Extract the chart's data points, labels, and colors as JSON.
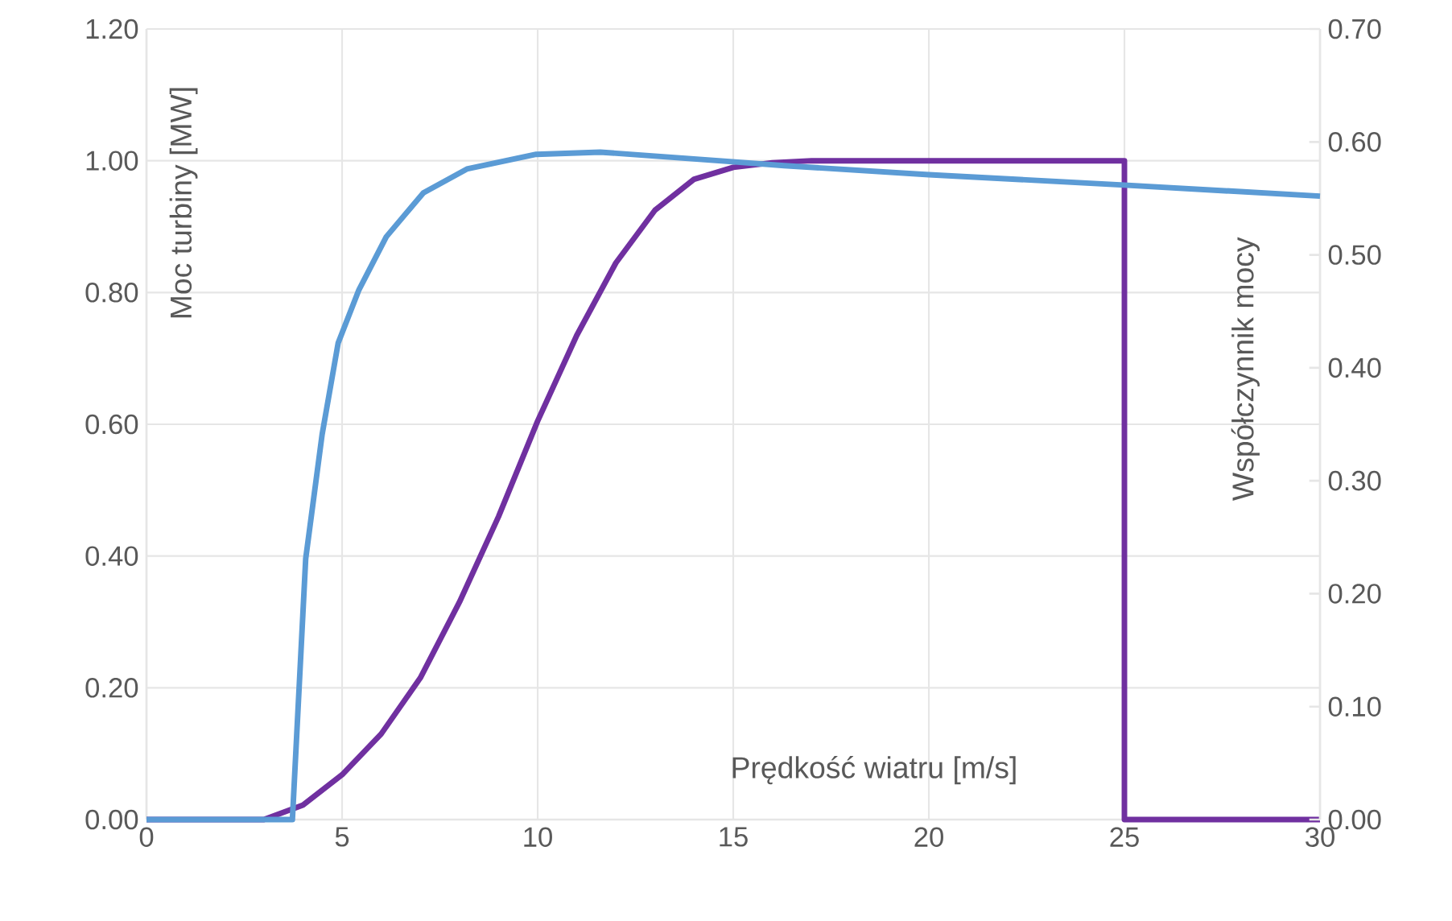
{
  "chart_data": {
    "type": "line",
    "xlabel": "Prędkość wiatru [m/s]",
    "ylabel": "Moc turbiny [MW]",
    "y2label": "Współczynnik mocy",
    "xlim": [
      0,
      30
    ],
    "xticks": [
      0,
      5,
      10,
      15,
      20,
      25,
      30
    ],
    "ylim": [
      0,
      1.2
    ],
    "yticks": [
      {
        "value": 0,
        "label": "0.00"
      },
      {
        "value": 0.2,
        "label": "0.20"
      },
      {
        "value": 0.4,
        "label": "0.40"
      },
      {
        "value": 0.6,
        "label": "0.60"
      },
      {
        "value": 0.8,
        "label": "0.80"
      },
      {
        "value": 1.0,
        "label": "1.00"
      },
      {
        "value": 1.2,
        "label": "1.20"
      }
    ],
    "y2lim": [
      0,
      0.7
    ],
    "y2ticks": [
      {
        "value": 0,
        "label": "0.00"
      },
      {
        "value": 0.1,
        "label": "0.10"
      },
      {
        "value": 0.2,
        "label": "0.20"
      },
      {
        "value": 0.3,
        "label": "0.30"
      },
      {
        "value": 0.4,
        "label": "0.40"
      },
      {
        "value": 0.5,
        "label": "0.50"
      },
      {
        "value": 0.6,
        "label": "0.60"
      },
      {
        "value": 0.7,
        "label": "0.70"
      }
    ],
    "grid": true,
    "legend": false,
    "marker": "none",
    "line_style": "solid",
    "series": [
      {
        "color": "#7030a0",
        "x": [
          0,
          3,
          4,
          5,
          6,
          7,
          8,
          9,
          10,
          11,
          12,
          13,
          14,
          15,
          16,
          17,
          20,
          25,
          25,
          30
        ],
        "values": [
          0,
          0,
          0.022,
          0.068,
          0.13,
          0.215,
          0.33,
          0.46,
          0.605,
          0.735,
          0.845,
          0.925,
          0.972,
          0.99,
          0.997,
          1.0,
          1.0,
          1.0,
          0,
          0
        ]
      },
      {
        "color": "#5b9bd5",
        "axis": "y2",
        "x": [
          0,
          3.73,
          4.07,
          4.49,
          4.9,
          5.43,
          6.13,
          7.08,
          8.19,
          9.96,
          11.6,
          14.77,
          16.3,
          20.0,
          24.9,
          30
        ],
        "values": [
          0,
          0,
          0.231,
          0.341,
          0.422,
          0.469,
          0.516,
          0.555,
          0.576,
          0.589,
          0.591,
          0.583,
          0.579,
          0.571,
          0.562,
          0.552
        ]
      }
    ]
  }
}
